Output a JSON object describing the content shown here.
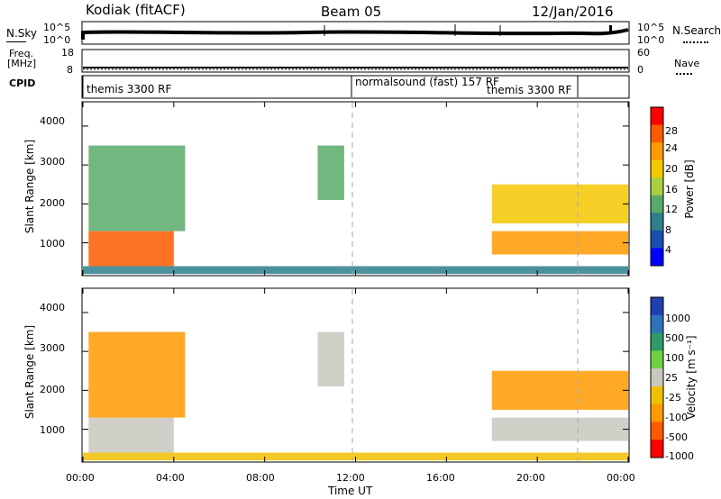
{
  "header": {
    "station": "Kodiak (fitACF)",
    "beam": "Beam 05",
    "date": "12/Jan/2016"
  },
  "summary_labels": {
    "nsky": "N.Sky",
    "nsky_ticks": [
      "10^5",
      "10^0"
    ],
    "nsearch": "N.Search",
    "nsearch_ticks": [
      "10^5",
      "10^0"
    ],
    "freq": "Freq.",
    "freq_unit": "[MHz]",
    "freq_ticks": [
      "18",
      "8"
    ],
    "nave": "Nave",
    "nave_ticks": [
      "60",
      "0"
    ],
    "cpid": "CPID"
  },
  "cpid_segments": [
    {
      "label": "themis 3300 RF"
    },
    {
      "label": "normalsound (fast) 157 RF"
    },
    {
      "label": "themis 3300 RF"
    }
  ],
  "power_colorbar": {
    "label": "Power [dB]",
    "ticks": [
      "28",
      "24",
      "20",
      "16",
      "12",
      "8",
      "4"
    ],
    "colors": [
      "#ff0000",
      "#ff5a00",
      "#ff9a00",
      "#f4c800",
      "#a8d040",
      "#59a96a",
      "#2d7f8c",
      "#1a4fb0",
      "#0000ff"
    ]
  },
  "velocity_colorbar": {
    "label": "Velocity [m s⁻¹]",
    "ticks": [
      "1000",
      "500",
      "100",
      "25",
      "-25",
      "-100",
      "-500",
      "-1000"
    ],
    "colors": [
      "#1f3fb0",
      "#2e72b8",
      "#2e9a6a",
      "#6fcf3f",
      "#c8c8c0",
      "#f0c000",
      "#ff9a00",
      "#ff5a00",
      "#ff0000"
    ]
  },
  "x_axis": {
    "label": "Time UT",
    "ticks": [
      "00:00",
      "04:00",
      "08:00",
      "12:00",
      "16:00",
      "20:00",
      "00:00"
    ]
  },
  "y_axis": {
    "label": "Slant Range [km]",
    "ticks": [
      "4000",
      "3000",
      "2000",
      "1000"
    ]
  },
  "chart_data": [
    {
      "type": "heatmap",
      "title": "",
      "xlabel": "Time UT",
      "ylabel": "Slant Range [km]",
      "xlim": [
        "00:00",
        "24:00"
      ],
      "ylim": [
        180,
        4600
      ],
      "colorbar": "Power [dB]",
      "color_range": [
        0,
        32
      ],
      "mode_changes_ut": [
        "12:00",
        "22:00"
      ],
      "regions": [
        {
          "t_start": "00:15",
          "t_end": "04:00",
          "range_km": [
            400,
            1300
          ],
          "power_db": 28
        },
        {
          "t_start": "00:15",
          "t_end": "04:30",
          "range_km": [
            1300,
            3500
          ],
          "power_db": 12
        },
        {
          "t_start": "10:20",
          "t_end": "11:30",
          "range_km": [
            2100,
            3500
          ],
          "power_db": 12
        },
        {
          "t_start": "18:00",
          "t_end": "24:00",
          "range_km": [
            700,
            1300
          ],
          "power_db": 24
        },
        {
          "t_start": "18:00",
          "t_end": "24:00",
          "range_km": [
            1500,
            2500
          ],
          "power_db": 20
        },
        {
          "t_start": "00:00",
          "t_end": "24:00",
          "range_km": [
            200,
            400
          ],
          "power_db": 8
        }
      ]
    },
    {
      "type": "heatmap",
      "title": "",
      "xlabel": "Time UT",
      "ylabel": "Slant Range [km]",
      "xlim": [
        "00:00",
        "24:00"
      ],
      "ylim": [
        180,
        4600
      ],
      "colorbar": "Velocity [m s⁻¹]",
      "color_range": [
        -1000,
        1000
      ],
      "mode_changes_ut": [
        "12:00",
        "22:00"
      ],
      "regions": [
        {
          "t_start": "00:15",
          "t_end": "04:00",
          "range_km": [
            400,
            1300
          ],
          "velocity_ms": 0
        },
        {
          "t_start": "00:15",
          "t_end": "04:30",
          "range_km": [
            1300,
            3500
          ],
          "velocity_ms": -200
        },
        {
          "t_start": "10:20",
          "t_end": "11:30",
          "range_km": [
            2100,
            3500
          ],
          "velocity_ms": 0
        },
        {
          "t_start": "18:00",
          "t_end": "24:00",
          "range_km": [
            700,
            1300
          ],
          "velocity_ms": 0
        },
        {
          "t_start": "18:00",
          "t_end": "24:00",
          "range_km": [
            1500,
            2500
          ],
          "velocity_ms": -300
        },
        {
          "t_start": "00:00",
          "t_end": "24:00",
          "range_km": [
            200,
            400
          ],
          "velocity_ms": -100
        }
      ]
    }
  ]
}
